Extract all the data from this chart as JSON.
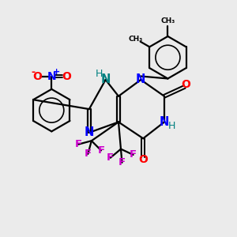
{
  "background_color": "#ebebeb",
  "bond_color": "#000000",
  "N_color": "#0000ff",
  "NH_color": "#008080",
  "O_color": "#ff0000",
  "F_color": "#cc00cc",
  "figsize": [
    3.0,
    3.0
  ],
  "dpi": 100,
  "xlim": [
    0,
    10
  ],
  "ylim": [
    0,
    10
  ]
}
